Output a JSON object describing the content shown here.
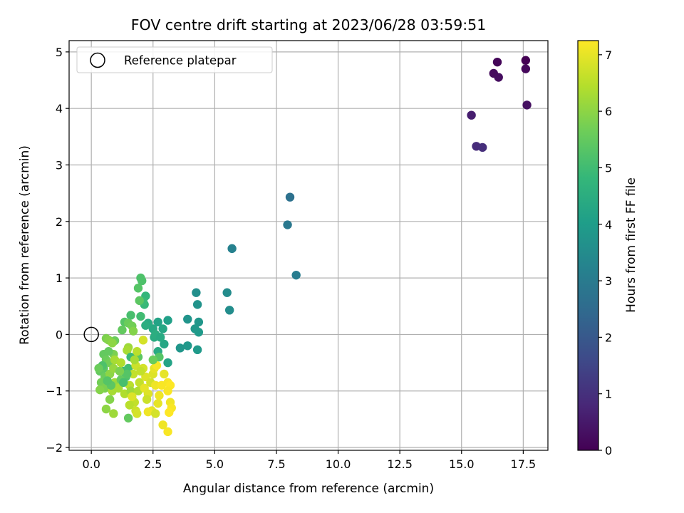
{
  "chart_data": {
    "type": "scatter",
    "title": "FOV centre drift starting at 2023/06/28 03:59:51",
    "xlabel": "Angular distance from reference (arcmin)",
    "ylabel": "Rotation from reference (arcmin)",
    "xlim": [
      -0.9,
      18.5
    ],
    "ylim": [
      -2.05,
      5.2
    ],
    "x_ticks": [
      0.0,
      2.5,
      5.0,
      7.5,
      10.0,
      12.5,
      15.0,
      17.5
    ],
    "x_tick_labels": [
      "0.0",
      "2.5",
      "5.0",
      "7.5",
      "10.0",
      "12.5",
      "15.0",
      "17.5"
    ],
    "y_ticks": [
      -2,
      -1,
      0,
      1,
      2,
      3,
      4,
      5
    ],
    "y_tick_labels": [
      "−2",
      "−1",
      "0",
      "1",
      "2",
      "3",
      "4",
      "5"
    ],
    "grid": true,
    "colormap": "viridis",
    "colorbar": {
      "label": "Hours from first FF file",
      "range": [
        0,
        7.25
      ],
      "ticks": [
        0,
        1,
        2,
        3,
        4,
        5,
        6,
        7
      ],
      "tick_labels": [
        "0",
        "1",
        "2",
        "3",
        "4",
        "5",
        "6",
        "7"
      ]
    },
    "legend": {
      "position": "top-left",
      "entries": [
        "Reference platepar"
      ]
    },
    "reference_point": {
      "x": 0.0,
      "y": 0.0
    },
    "points": [
      {
        "x": 17.6,
        "y": 4.85,
        "t": 0.0
      },
      {
        "x": 16.45,
        "y": 4.82,
        "t": 0.1
      },
      {
        "x": 17.6,
        "y": 4.7,
        "t": 0.15
      },
      {
        "x": 16.3,
        "y": 4.62,
        "t": 0.2
      },
      {
        "x": 16.5,
        "y": 4.55,
        "t": 0.25
      },
      {
        "x": 17.65,
        "y": 4.06,
        "t": 0.3
      },
      {
        "x": 15.4,
        "y": 3.88,
        "t": 0.6
      },
      {
        "x": 15.6,
        "y": 3.33,
        "t": 0.9
      },
      {
        "x": 15.85,
        "y": 3.31,
        "t": 0.95
      },
      {
        "x": 8.05,
        "y": 2.43,
        "t": 2.7
      },
      {
        "x": 7.95,
        "y": 1.94,
        "t": 2.9
      },
      {
        "x": 5.7,
        "y": 1.52,
        "t": 3.2
      },
      {
        "x": 8.3,
        "y": 1.05,
        "t": 3.05
      },
      {
        "x": 5.5,
        "y": 0.74,
        "t": 3.5
      },
      {
        "x": 4.25,
        "y": 0.74,
        "t": 3.6
      },
      {
        "x": 5.6,
        "y": 0.43,
        "t": 3.55
      },
      {
        "x": 4.3,
        "y": 0.53,
        "t": 3.7
      },
      {
        "x": 4.35,
        "y": 0.22,
        "t": 3.8
      },
      {
        "x": 4.2,
        "y": 0.1,
        "t": 3.85
      },
      {
        "x": 4.35,
        "y": 0.04,
        "t": 3.9
      },
      {
        "x": 3.9,
        "y": 0.27,
        "t": 3.75
      },
      {
        "x": 3.1,
        "y": 0.25,
        "t": 4.1
      },
      {
        "x": 2.7,
        "y": 0.22,
        "t": 4.2
      },
      {
        "x": 3.6,
        "y": -0.24,
        "t": 3.8
      },
      {
        "x": 3.9,
        "y": -0.2,
        "t": 3.85
      },
      {
        "x": 4.3,
        "y": -0.27,
        "t": 3.9
      },
      {
        "x": 2.95,
        "y": -0.17,
        "t": 4.3
      },
      {
        "x": 2.7,
        "y": -0.3,
        "t": 4.4
      },
      {
        "x": 3.1,
        "y": -0.5,
        "t": 4.2
      },
      {
        "x": 2.5,
        "y": 0.1,
        "t": 4.35
      },
      {
        "x": 2.3,
        "y": 0.2,
        "t": 4.4
      },
      {
        "x": 2.2,
        "y": 0.16,
        "t": 4.5
      },
      {
        "x": 2.55,
        "y": -0.05,
        "t": 4.45
      },
      {
        "x": 2.9,
        "y": 0.1,
        "t": 4.3
      },
      {
        "x": 2.6,
        "y": 0.0,
        "t": 4.5
      },
      {
        "x": 2.8,
        "y": -0.05,
        "t": 4.4
      },
      {
        "x": 2.2,
        "y": 0.68,
        "t": 4.8
      },
      {
        "x": 2.0,
        "y": 1.0,
        "t": 5.2
      },
      {
        "x": 2.05,
        "y": 0.95,
        "t": 5.2
      },
      {
        "x": 1.9,
        "y": 0.82,
        "t": 5.3
      },
      {
        "x": 2.15,
        "y": 0.53,
        "t": 4.85
      },
      {
        "x": 2.1,
        "y": 0.58,
        "t": 4.9
      },
      {
        "x": 1.95,
        "y": 0.6,
        "t": 5.4
      },
      {
        "x": 2.0,
        "y": 0.32,
        "t": 5.0
      },
      {
        "x": 1.6,
        "y": 0.34,
        "t": 5.1
      },
      {
        "x": 1.35,
        "y": 0.22,
        "t": 5.3
      },
      {
        "x": 1.5,
        "y": 0.2,
        "t": 5.6
      },
      {
        "x": 1.65,
        "y": 0.15,
        "t": 5.7
      },
      {
        "x": 1.7,
        "y": 0.06,
        "t": 5.9
      },
      {
        "x": 1.25,
        "y": 0.08,
        "t": 5.5
      },
      {
        "x": 0.95,
        "y": -0.11,
        "t": 5.6
      },
      {
        "x": 0.6,
        "y": -0.07,
        "t": 5.8
      },
      {
        "x": 0.7,
        "y": -0.1,
        "t": 5.9
      },
      {
        "x": 0.85,
        "y": -0.15,
        "t": 6.0
      },
      {
        "x": 1.5,
        "y": -0.23,
        "t": 6.2
      },
      {
        "x": 1.45,
        "y": -0.28,
        "t": 6.3
      },
      {
        "x": 1.6,
        "y": -0.4,
        "t": 4.9
      },
      {
        "x": 1.9,
        "y": -0.4,
        "t": 5.4
      },
      {
        "x": 1.85,
        "y": -0.3,
        "t": 6.5
      },
      {
        "x": 2.1,
        "y": -0.1,
        "t": 6.8
      },
      {
        "x": 0.5,
        "y": -0.35,
        "t": 5.5
      },
      {
        "x": 0.6,
        "y": -0.45,
        "t": 5.6
      },
      {
        "x": 0.75,
        "y": -0.5,
        "t": 5.7
      },
      {
        "x": 0.9,
        "y": -0.35,
        "t": 5.8
      },
      {
        "x": 0.5,
        "y": -0.6,
        "t": 5.4
      },
      {
        "x": 0.35,
        "y": -0.65,
        "t": 5.5
      },
      {
        "x": 0.55,
        "y": -0.75,
        "t": 5.6
      },
      {
        "x": 0.4,
        "y": -0.85,
        "t": 5.7
      },
      {
        "x": 0.55,
        "y": -0.95,
        "t": 5.8
      },
      {
        "x": 0.35,
        "y": -0.98,
        "t": 5.9
      },
      {
        "x": 0.75,
        "y": -0.7,
        "t": 6.0
      },
      {
        "x": 0.9,
        "y": -0.6,
        "t": 6.1
      },
      {
        "x": 0.95,
        "y": -0.85,
        "t": 6.2
      },
      {
        "x": 0.85,
        "y": -1.0,
        "t": 6.3
      },
      {
        "x": 1.0,
        "y": -0.9,
        "t": 6.1
      },
      {
        "x": 0.75,
        "y": -1.15,
        "t": 5.9
      },
      {
        "x": 0.9,
        "y": -1.4,
        "t": 6.2
      },
      {
        "x": 0.6,
        "y": -1.32,
        "t": 6.0
      },
      {
        "x": 1.3,
        "y": -0.65,
        "t": 4.9
      },
      {
        "x": 1.5,
        "y": -0.6,
        "t": 5.0
      },
      {
        "x": 1.4,
        "y": -0.75,
        "t": 5.2
      },
      {
        "x": 1.2,
        "y": -0.8,
        "t": 5.5
      },
      {
        "x": 1.1,
        "y": -0.95,
        "t": 6.3
      },
      {
        "x": 1.35,
        "y": -1.05,
        "t": 6.4
      },
      {
        "x": 1.55,
        "y": -0.9,
        "t": 6.5
      },
      {
        "x": 1.7,
        "y": -0.7,
        "t": 6.6
      },
      {
        "x": 1.8,
        "y": -0.55,
        "t": 6.7
      },
      {
        "x": 1.75,
        "y": -1.2,
        "t": 6.6
      },
      {
        "x": 1.8,
        "y": -1.35,
        "t": 6.7
      },
      {
        "x": 1.85,
        "y": -1.4,
        "t": 6.8
      },
      {
        "x": 1.55,
        "y": -1.25,
        "t": 6.5
      },
      {
        "x": 1.6,
        "y": -1.0,
        "t": 6.2
      },
      {
        "x": 1.9,
        "y": -1.0,
        "t": 6.4
      },
      {
        "x": 1.95,
        "y": -0.85,
        "t": 6.6
      },
      {
        "x": 2.1,
        "y": -0.6,
        "t": 6.8
      },
      {
        "x": 2.2,
        "y": -0.75,
        "t": 6.9
      },
      {
        "x": 2.15,
        "y": -0.95,
        "t": 7.0
      },
      {
        "x": 2.3,
        "y": -1.05,
        "t": 6.9
      },
      {
        "x": 2.4,
        "y": -0.85,
        "t": 6.8
      },
      {
        "x": 2.5,
        "y": -0.7,
        "t": 6.9
      },
      {
        "x": 2.55,
        "y": -0.6,
        "t": 7.0
      },
      {
        "x": 2.6,
        "y": -0.9,
        "t": 7.1
      },
      {
        "x": 2.45,
        "y": -1.35,
        "t": 7.0
      },
      {
        "x": 2.3,
        "y": -1.37,
        "t": 7.1
      },
      {
        "x": 2.6,
        "y": -1.4,
        "t": 6.8
      },
      {
        "x": 2.7,
        "y": -1.22,
        "t": 7.0
      },
      {
        "x": 2.75,
        "y": -1.08,
        "t": 7.1
      },
      {
        "x": 2.85,
        "y": -0.9,
        "t": 7.2
      },
      {
        "x": 2.95,
        "y": -0.7,
        "t": 7.0
      },
      {
        "x": 3.1,
        "y": -0.85,
        "t": 7.2
      },
      {
        "x": 3.2,
        "y": -0.9,
        "t": 7.25
      },
      {
        "x": 3.1,
        "y": -1.0,
        "t": 7.2
      },
      {
        "x": 3.2,
        "y": -1.2,
        "t": 7.1
      },
      {
        "x": 3.25,
        "y": -1.3,
        "t": 7.2
      },
      {
        "x": 3.15,
        "y": -1.38,
        "t": 7.25
      },
      {
        "x": 3.1,
        "y": -1.72,
        "t": 7.2
      },
      {
        "x": 2.9,
        "y": -1.6,
        "t": 7.1
      },
      {
        "x": 2.65,
        "y": -0.55,
        "t": 7.2
      },
      {
        "x": 2.75,
        "y": -0.4,
        "t": 5.3
      },
      {
        "x": 2.5,
        "y": -0.45,
        "t": 5.6
      },
      {
        "x": 1.5,
        "y": -1.48,
        "t": 5.5
      },
      {
        "x": 1.45,
        "y": -0.7,
        "t": 5.3
      },
      {
        "x": 1.15,
        "y": -0.65,
        "t": 5.8
      },
      {
        "x": 0.8,
        "y": -0.9,
        "t": 5.4
      },
      {
        "x": 0.65,
        "y": -0.82,
        "t": 5.3
      },
      {
        "x": 0.45,
        "y": -0.55,
        "t": 5.2
      },
      {
        "x": 0.3,
        "y": -0.6,
        "t": 5.6
      },
      {
        "x": 0.7,
        "y": -0.3,
        "t": 5.5
      },
      {
        "x": 0.95,
        "y": -0.45,
        "t": 6.3
      },
      {
        "x": 1.2,
        "y": -0.5,
        "t": 6.4
      },
      {
        "x": 1.75,
        "y": -0.45,
        "t": 6.3
      },
      {
        "x": 2.0,
        "y": -0.65,
        "t": 6.6
      },
      {
        "x": 2.25,
        "y": -1.15,
        "t": 6.7
      },
      {
        "x": 1.65,
        "y": -1.1,
        "t": 6.9
      },
      {
        "x": 1.3,
        "y": -0.85,
        "t": 5.1
      }
    ]
  }
}
